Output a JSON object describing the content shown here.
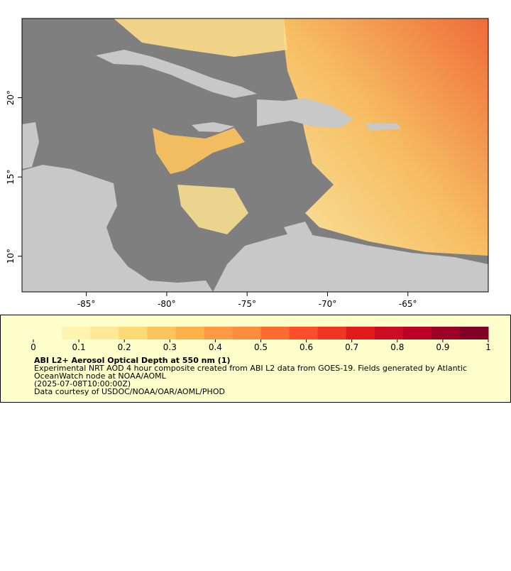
{
  "chart_data": {
    "type": "map",
    "xlim": [
      -89,
      -60
    ],
    "ylim": [
      7.75,
      25
    ],
    "xticks": [
      {
        "value": -85,
        "label": "-85°"
      },
      {
        "value": -80,
        "label": "-80°"
      },
      {
        "value": -75,
        "label": "-75°"
      },
      {
        "value": -70,
        "label": "-70°"
      },
      {
        "value": -65,
        "label": "-65°"
      }
    ],
    "yticks": [
      {
        "value": 10,
        "label": "10°"
      },
      {
        "value": 15,
        "label": "15°"
      },
      {
        "value": 20,
        "label": "20°"
      }
    ],
    "colorbar": {
      "lim": [
        0,
        1
      ],
      "ticks": [
        0,
        0.1,
        0.2,
        0.3,
        0.4,
        0.5,
        0.6,
        0.7,
        0.8,
        0.9,
        1
      ],
      "colors": [
        "#ffffcc",
        "#fff3b0",
        "#ffe896",
        "#fed976",
        "#fec45d",
        "#feb24c",
        "#fd9a43",
        "#fd8d3c",
        "#fc6b30",
        "#fc4e2a",
        "#f03523",
        "#e31a1c",
        "#cc0c22",
        "#bd0026",
        "#9c0026",
        "#800026"
      ]
    },
    "title": "ABI L2+ Aerosol Optical Depth at 550 nm (1)",
    "description": [
      "Experimental NRT AOD 4 hour composite created from ABI L2 data from GOES-19. Fields generated by Atlantic",
      "OceanWatch node at NOAA/AOML"
    ],
    "timestamp": "(2025-07-08T10:00:00Z)",
    "credit": "Data courtesy of USDOC/NOAA/OAR/AOML/PHOD"
  }
}
